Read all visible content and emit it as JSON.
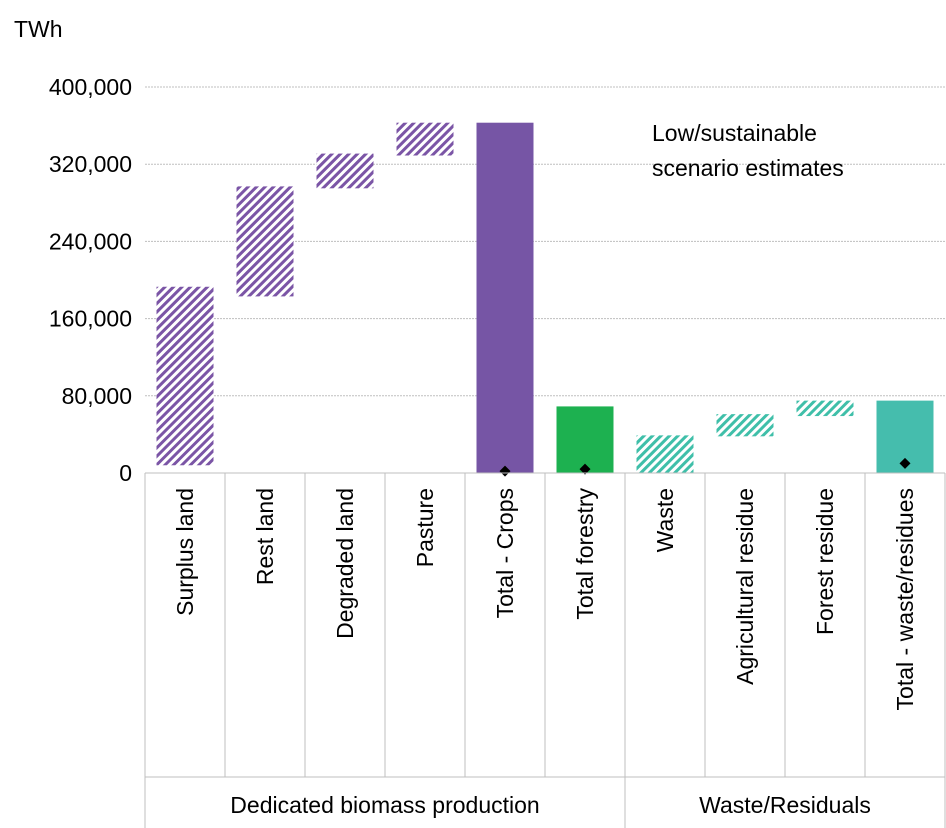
{
  "chart_data": {
    "type": "bar",
    "subtype": "waterfall",
    "unit_label": "TWh",
    "annotation": [
      "Low/sustainable",
      "scenario estimates"
    ],
    "ylim": [
      0,
      400000
    ],
    "yticks": [
      0,
      80000,
      160000,
      240000,
      320000,
      400000
    ],
    "ytick_labels": [
      "0",
      "80,000",
      "160,000",
      "240,000",
      "320,000",
      "400,000"
    ],
    "grid": true,
    "categories": [
      "Surplus land",
      "Rest land",
      "Degraded land",
      "Pasture",
      "Total - Crops",
      "Total forestry",
      "Waste",
      "Agricultural residue",
      "Forest residue",
      "Total - waste/residues"
    ],
    "groups": [
      {
        "label": "Dedicated biomass production",
        "categories": [
          "Surplus land",
          "Rest land",
          "Degraded land",
          "Pasture",
          "Total - Crops",
          "Total forestry"
        ]
      },
      {
        "label": "Waste/Residuals",
        "categories": [
          "Waste",
          "Agricultural residue",
          "Forest residue",
          "Total - waste/residues"
        ]
      }
    ],
    "bars": [
      {
        "category": "Surplus land",
        "base": 8000,
        "top": 193000,
        "style": "hatched",
        "color": "#7B55A6"
      },
      {
        "category": "Rest land",
        "base": 183000,
        "top": 297000,
        "style": "hatched",
        "color": "#7B55A6"
      },
      {
        "category": "Degraded land",
        "base": 295000,
        "top": 331000,
        "style": "hatched",
        "color": "#7B55A6"
      },
      {
        "category": "Pasture",
        "base": 329000,
        "top": 363000,
        "style": "hatched",
        "color": "#7B55A6"
      },
      {
        "category": "Total - Crops",
        "base": 0,
        "top": 363000,
        "style": "solid",
        "color": "#7655A5",
        "marker": 2000
      },
      {
        "category": "Total forestry",
        "base": 0,
        "top": 69000,
        "style": "solid",
        "color": "#1DB150",
        "marker": 4000
      },
      {
        "category": "Waste",
        "base": 0,
        "top": 39000,
        "style": "hatched",
        "color": "#3FBFA9"
      },
      {
        "category": "Agricultural residue",
        "base": 38000,
        "top": 61000,
        "style": "hatched",
        "color": "#3FBFA9"
      },
      {
        "category": "Forest residue",
        "base": 59000,
        "top": 75000,
        "style": "hatched",
        "color": "#3FBFA9"
      },
      {
        "category": "Total - waste/residues",
        "base": 0,
        "top": 75000,
        "style": "solid",
        "color": "#45BDAD",
        "marker": 10000
      }
    ]
  }
}
